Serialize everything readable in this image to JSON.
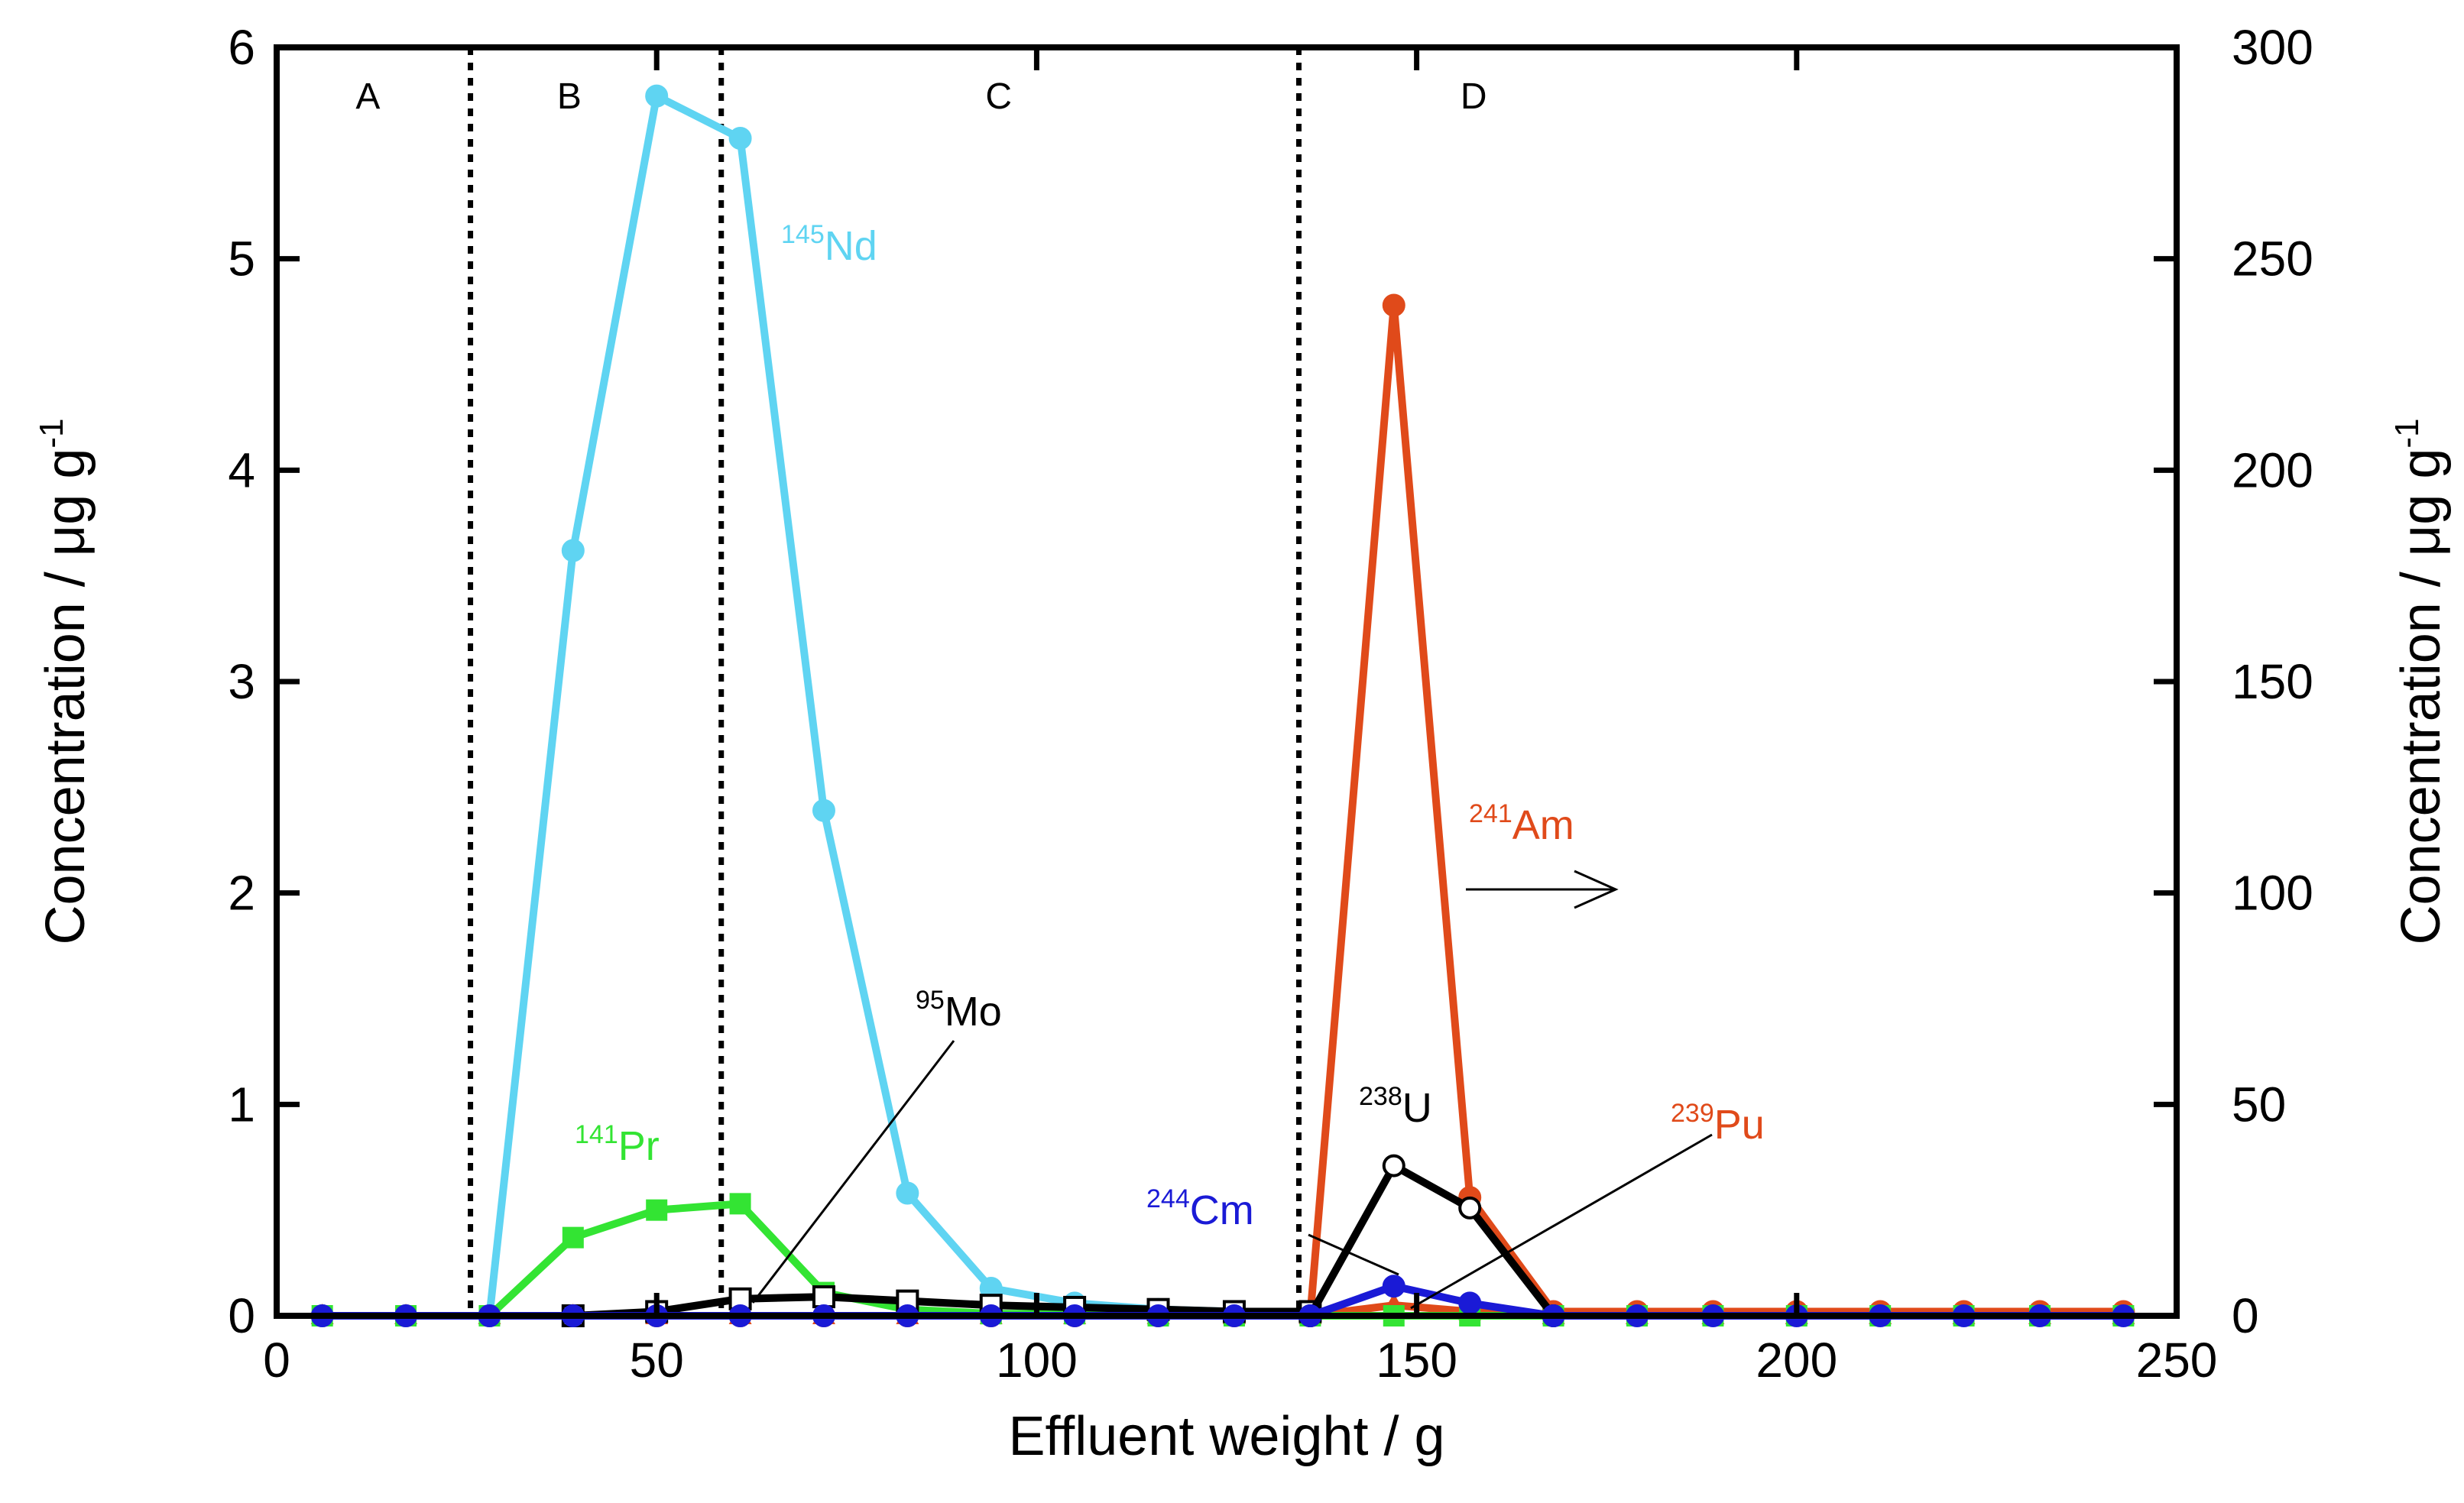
{
  "chart_data": {
    "type": "line",
    "xlabel": "Effluent weight / g",
    "ylabel_left": "Concentration /   μg g",
    "ylabel_left_sup": "-1",
    "ylabel_right": "Concentration /   μg g",
    "ylabel_right_sup": "-1",
    "xlim": [
      0,
      250
    ],
    "ylim_left": [
      0,
      6
    ],
    "ylim_right": [
      0,
      300
    ],
    "xticks": [
      0,
      50,
      100,
      150,
      200,
      250
    ],
    "yticks_left": [
      0,
      1,
      2,
      3,
      4,
      5,
      6
    ],
    "yticks_right": [
      0,
      50,
      100,
      150,
      200,
      250,
      300
    ],
    "region_dividers": [
      25.5,
      58.5,
      134.5
    ],
    "regions": [
      {
        "label": "A",
        "x": 12
      },
      {
        "label": "B",
        "x": 38.5
      },
      {
        "label": "C",
        "x": 95
      },
      {
        "label": "D",
        "x": 157.5
      }
    ],
    "x": [
      6,
      17,
      28,
      39,
      50,
      61,
      72,
      83,
      94,
      105,
      116,
      126,
      136,
      147,
      157,
      168,
      179,
      189,
      200,
      211,
      222,
      232,
      243
    ],
    "series": [
      {
        "name": "Am-241",
        "mass": "241",
        "element": "Am",
        "axis": "right",
        "color": "#e04a1a",
        "marker": "circle-filled",
        "values": [
          0,
          0,
          0,
          0,
          0,
          0,
          0,
          0,
          0,
          0,
          0,
          0,
          0,
          239,
          28,
          1,
          1,
          1,
          1,
          1,
          1,
          1,
          1
        ]
      },
      {
        "name": "Pu-239",
        "mass": "239",
        "element": "Pu",
        "axis": "left",
        "color": "#e04a1a",
        "marker": "triangle-filled",
        "values": [
          0,
          0,
          0,
          0,
          0,
          0,
          0,
          0,
          0,
          0,
          0,
          0,
          0,
          0.05,
          0.02,
          0,
          0,
          0,
          0,
          0,
          0,
          0,
          0
        ]
      },
      {
        "name": "Nd-145",
        "mass": "145",
        "element": "Nd",
        "axis": "left",
        "color": "#5fd4f2",
        "marker": "circle-filled",
        "values": [
          0,
          0,
          0,
          3.62,
          5.77,
          5.57,
          2.39,
          0.58,
          0.13,
          0.06,
          0.03,
          0.02,
          0.02,
          null,
          null,
          null,
          null,
          null,
          null,
          null,
          null,
          null,
          null
        ]
      },
      {
        "name": "Pr-141",
        "mass": "141",
        "element": "Pr",
        "axis": "left",
        "color": "#33e433",
        "marker": "square-filled",
        "values": [
          0,
          0,
          0,
          0.37,
          0.5,
          0.53,
          0.11,
          0.03,
          0.01,
          0.01,
          0,
          0,
          0,
          0,
          0,
          0,
          0,
          0,
          0,
          0,
          0,
          0,
          0
        ]
      },
      {
        "name": "Mo-95",
        "mass": "95",
        "element": "Mo",
        "axis": "left",
        "color": "#000000",
        "marker": "square-open",
        "values": [
          null,
          null,
          null,
          0,
          0.02,
          0.08,
          0.09,
          0.07,
          0.05,
          0.04,
          0.03,
          0.02,
          0.02,
          null,
          null,
          null,
          null,
          null,
          null,
          null,
          null,
          null,
          null
        ]
      },
      {
        "name": "U-238",
        "mass": "238",
        "element": "U",
        "axis": "left",
        "color": "#000000",
        "marker": "circle-open",
        "values": [
          null,
          null,
          null,
          null,
          null,
          null,
          null,
          null,
          null,
          null,
          null,
          null,
          0,
          0.71,
          0.51,
          0,
          null,
          null,
          null,
          null,
          null,
          null,
          null
        ]
      },
      {
        "name": "Cm-244",
        "mass": "244",
        "element": "Cm",
        "axis": "left",
        "color": "#1a1ad6",
        "marker": "circle-filled",
        "values": [
          0,
          0,
          0,
          0,
          0,
          0,
          0,
          0,
          0,
          0,
          0,
          0,
          0,
          0.14,
          0.06,
          0,
          0,
          0,
          0,
          0,
          0,
          0,
          0
        ]
      }
    ],
    "annotations": [
      {
        "id": "nd",
        "mass": "145",
        "element": "Nd",
        "color": "#5fd4f2"
      },
      {
        "id": "pr",
        "mass": "141",
        "element": "Pr",
        "color": "#33e433"
      },
      {
        "id": "mo",
        "mass": "95",
        "element": "Mo",
        "color": "#000000"
      },
      {
        "id": "u",
        "mass": "238",
        "element": "U",
        "color": "#000000"
      },
      {
        "id": "pu",
        "mass": "239",
        "element": "Pu",
        "color": "#e04a1a"
      },
      {
        "id": "cm",
        "mass": "244",
        "element": "Cm",
        "color": "#1a1ad6"
      },
      {
        "id": "am",
        "mass": "241",
        "element": "Am",
        "color": "#e04a1a"
      }
    ]
  }
}
